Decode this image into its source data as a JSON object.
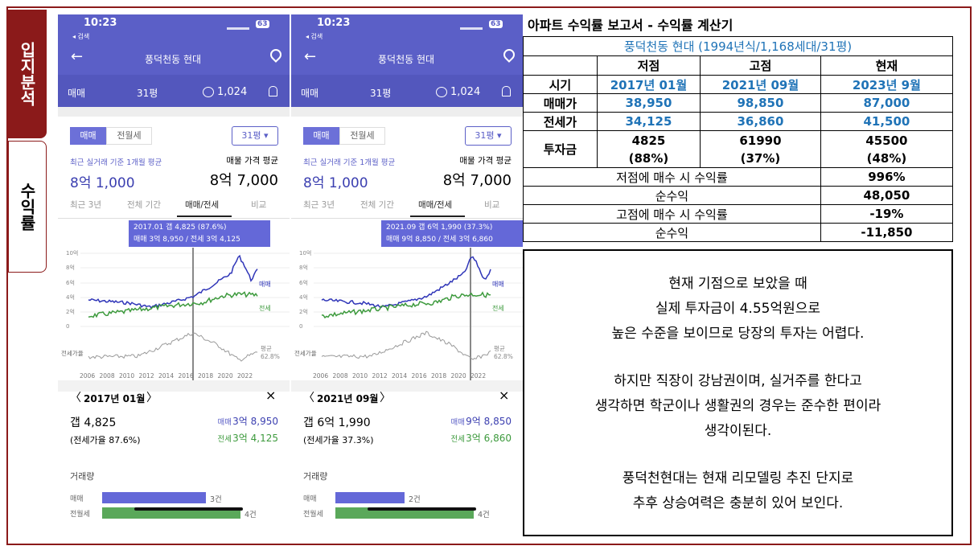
{
  "side_tabs": [
    "입지분석",
    "수익률"
  ],
  "phones": [
    {
      "time": "10:23",
      "back": "◂ 검색",
      "battery": "63",
      "title": "풍덕천동 현대",
      "toolbar": {
        "trade": "매매",
        "size": "31평",
        "comments": "1,024"
      },
      "tabs": [
        "매매",
        "전월세"
      ],
      "size_select": "31평 ▾",
      "avg_label": "최근 실거래 기준 1개월 평균",
      "listing_label": "매물 가격 평균",
      "avg_price": "8억 1,000",
      "listing_price": "8억 7,000",
      "periods": [
        "최근 3년",
        "전체 기간",
        "매매/전세",
        "비교"
      ],
      "tooltip": [
        "2017.01 갭 4,825 (87.6%)",
        "매매 3억 8,950 / 전세 3억 4,125"
      ],
      "yticks": [
        "10억",
        "8억",
        "6억",
        "4억",
        "2억",
        "0"
      ],
      "series_labels": [
        "매매",
        "전세"
      ],
      "ratio_label": "전세가율",
      "avg_ratio": [
        "평균",
        "62.8%"
      ],
      "years": [
        "2006",
        "2008",
        "2010",
        "2012",
        "2014",
        "2016",
        "2018",
        "2020",
        "2022"
      ],
      "detail": {
        "date": "2017년 01월",
        "gap": "갭 4,825",
        "ratio": "(전세가율 87.6%)",
        "sale_label": "매매",
        "sale": "3억 8,950",
        "jeonse_label": "전세",
        "jeonse": "3억 4,125"
      },
      "volume": {
        "title": "거래량",
        "rows": [
          {
            "label": "매매",
            "count": "3건"
          },
          {
            "label": "전월세",
            "count": "4건"
          }
        ]
      }
    },
    {
      "time": "10:23",
      "back": "◂ 검색",
      "battery": "63",
      "title": "풍덕천동 현대",
      "toolbar": {
        "trade": "매매",
        "size": "31평",
        "comments": "1,024"
      },
      "tabs": [
        "매매",
        "전월세"
      ],
      "size_select": "31평 ▾",
      "avg_label": "최근 실거래 기준 1개월 평균",
      "listing_label": "매물 가격 평균",
      "avg_price": "8억 1,000",
      "listing_price": "8억 7,000",
      "periods": [
        "최근 3년",
        "전체 기간",
        "매매/전세",
        "비교"
      ],
      "tooltip": [
        "2021.09 갭 6억 1,990 (37.3%)",
        "매매 9억 8,850 / 전세 3억 6,860"
      ],
      "yticks": [
        "10억",
        "8억",
        "6억",
        "4억",
        "2억",
        "0"
      ],
      "series_labels": [
        "매매",
        "전세"
      ],
      "ratio_label": "전세가율",
      "avg_ratio": [
        "평균",
        "62.8%"
      ],
      "years": [
        "2006",
        "2008",
        "2010",
        "2012",
        "2014",
        "2016",
        "2018",
        "2020",
        "2022"
      ],
      "detail": {
        "date": "2021년 09월",
        "gap": "갭 6억 1,990",
        "ratio": "(전세가율 37.3%)",
        "sale_label": "매매",
        "sale": "9억 8,850",
        "jeonse_label": "전세",
        "jeonse": "3억 6,860"
      },
      "volume": {
        "title": "거래량",
        "rows": [
          {
            "label": "매매",
            "count": "2건"
          },
          {
            "label": "전월세",
            "count": "4건"
          }
        ]
      }
    }
  ],
  "table": {
    "title": "아파트 수익률 보고서 - 수익률 계산기",
    "subtitle": "풍덕천동 현대 (1994년식/1,168세대/31평)",
    "header": [
      "저점",
      "고점",
      "현재"
    ],
    "rows": [
      {
        "label": "시기",
        "cells": [
          "2017년 01월",
          "2021년 09월",
          "2023년 9월"
        ]
      },
      {
        "label": "매매가",
        "cells": [
          "38,950",
          "98,850",
          "87,000"
        ]
      },
      {
        "label": "전세가",
        "cells": [
          "34,125",
          "36,860",
          "41,500"
        ]
      }
    ],
    "investment": {
      "label": "투자금",
      "cells": [
        [
          "4825",
          "(88%)"
        ],
        [
          "61990",
          "(37%)"
        ],
        [
          "45500",
          "(48%)"
        ]
      ]
    },
    "summary": [
      [
        "저점에 매수 시 수익률",
        "996%"
      ],
      [
        "순수익",
        "48,050"
      ],
      [
        "고점에 매수 시 수익률",
        "-19%"
      ],
      [
        "순수익",
        "-11,850"
      ]
    ]
  },
  "note": {
    "paragraphs": [
      [
        "현재 기점으로 보았을 때",
        "실제 투자금이 4.55억원으로",
        "높은 수준을 보이므로 당장의 투자는 어렵다."
      ],
      [
        "하지만 직장이 강남권이며, 실거주를 한다고",
        "생각하면 학군이나 생활권의 경우는 준수한 편이라",
        "생각이된다."
      ],
      [
        "풍덕천현대는 현재 리모델링 추진 단지로",
        "추후 상승여력은 충분히 있어 보인다."
      ]
    ]
  }
}
